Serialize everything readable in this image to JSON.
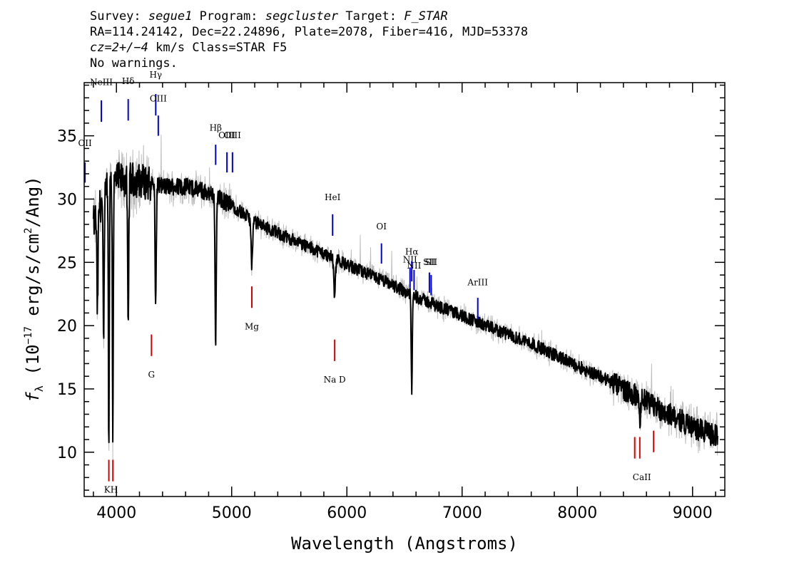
{
  "header": {
    "survey_label": "Survey:",
    "survey": "segue1",
    "program_label": "Program:",
    "program": "segcluster",
    "target_label": "Target:",
    "target": "F_STAR",
    "line2": "RA=114.24142, Dec=22.24896, Plate=2078, Fiber=416, MJD=53378",
    "cz_label": "cz=2+/−4",
    "cz_unit": "km/s Class=STAR F5",
    "line4": "No warnings."
  },
  "colors": {
    "flux": "#000000",
    "noise": "#bdbdbd",
    "emission": "#0000dd",
    "absorption": "#dd0000"
  },
  "chart_data": {
    "type": "line",
    "xlabel": "Wavelength (Angstroms)",
    "ylabel_prefix": "f",
    "ylabel_subscript": "λ",
    "ylabel_main": " (10",
    "ylabel_exp": "−17",
    "ylabel_units": " erg/s/cm",
    "ylabel_units_exp": "2",
    "ylabel_units_end": "/Ang)",
    "xlim": [
      3720,
      9280
    ],
    "ylim": [
      6.5,
      39.2
    ],
    "xticks": [
      4000,
      5000,
      6000,
      7000,
      8000,
      9000
    ],
    "yticks": [
      10,
      15,
      20,
      25,
      30,
      35
    ],
    "x_minor_step": 200,
    "y_minor_step": 1,
    "continuum": [
      [
        3800,
        28
      ],
      [
        3900,
        30.5
      ],
      [
        4000,
        31.5
      ],
      [
        4200,
        31.5
      ],
      [
        4400,
        31
      ],
      [
        4600,
        31
      ],
      [
        4800,
        30.5
      ],
      [
        5000,
        29.5
      ],
      [
        5200,
        28.2
      ],
      [
        5400,
        27.3
      ],
      [
        5600,
        26.5
      ],
      [
        5800,
        25.7
      ],
      [
        6000,
        24.8
      ],
      [
        6200,
        24
      ],
      [
        6400,
        23.2
      ],
      [
        6600,
        22.3
      ],
      [
        6800,
        21.5
      ],
      [
        7000,
        20.8
      ],
      [
        7200,
        20
      ],
      [
        7400,
        19.3
      ],
      [
        7600,
        18.6
      ],
      [
        7800,
        17.7
      ],
      [
        8000,
        16.8
      ],
      [
        8200,
        16
      ],
      [
        8400,
        15
      ],
      [
        8600,
        14
      ],
      [
        8800,
        13
      ],
      [
        9000,
        12
      ],
      [
        9200,
        11.3
      ]
    ],
    "absorption_features": [
      {
        "wave": 3835,
        "depth": 8
      },
      {
        "wave": 3889,
        "depth": 12
      },
      {
        "wave": 3933.7,
        "depth": 21
      },
      {
        "wave": 3968.5,
        "depth": 20
      },
      {
        "wave": 4101.7,
        "depth": 12
      },
      {
        "wave": 4340.5,
        "depth": 10
      },
      {
        "wave": 4861.3,
        "depth": 12
      },
      {
        "wave": 5175,
        "depth": 3.5
      },
      {
        "wave": 5893,
        "depth": 3
      },
      {
        "wave": 6562.8,
        "depth": 7.5
      },
      {
        "wave": 8542,
        "depth": 2
      }
    ],
    "emission_lines": [
      {
        "label": "OII",
        "wave": 3727,
        "y1": 31.3,
        "y2": 32.9,
        "label_y": 34.2
      },
      {
        "label": "NeIII",
        "wave": 3869,
        "y1": 36.1,
        "y2": 37.8,
        "label_y": 39
      },
      {
        "label": "Hδ",
        "wave": 4102,
        "y1": 36.2,
        "y2": 37.9,
        "label_y": 39.1
      },
      {
        "label": "Hγ",
        "wave": 4341,
        "y1": 36.6,
        "y2": 38.3,
        "label_y": 39.6
      },
      {
        "label": "OIII",
        "wave": 4363,
        "y1": 35.0,
        "y2": 36.6,
        "label_y": 37.7
      },
      {
        "label": "Hβ",
        "wave": 4861,
        "y1": 32.7,
        "y2": 34.3,
        "label_y": 35.4
      },
      {
        "label": "OIII",
        "wave": 4959,
        "y1": 32.1,
        "y2": 33.7,
        "label_y": 34.8
      },
      {
        "label": "OIII",
        "wave": 5007,
        "y1": 32.1,
        "y2": 33.7,
        "label_y": 34.8
      },
      {
        "label": "HeI",
        "wave": 5876,
        "y1": 27.1,
        "y2": 28.8,
        "label_y": 29.9
      },
      {
        "label": "OI",
        "wave": 6300,
        "y1": 24.9,
        "y2": 26.5,
        "label_y": 27.6
      },
      {
        "label": "NII",
        "wave": 6548,
        "y1": 23.0,
        "y2": 24.6,
        "label_y": 25.0
      },
      {
        "label": "Hα",
        "wave": 6563,
        "y1": 23.5,
        "y2": 25.1,
        "label_y": 25.6
      },
      {
        "label": "NII",
        "wave": 6583,
        "y1": 22.8,
        "y2": 24.4,
        "label_y": 24.5
      },
      {
        "label": "SII",
        "wave": 6716,
        "y1": 22.6,
        "y2": 24.2,
        "label_y": 24.8
      },
      {
        "label": "SII",
        "wave": 6731,
        "y1": 22.4,
        "y2": 24.0,
        "label_y": 24.8
      },
      {
        "label": "ArIII",
        "wave": 7136,
        "y1": 20.5,
        "y2": 22.2,
        "label_y": 23.2
      }
    ],
    "absorption_lines": [
      {
        "label": "K",
        "wave": 3934,
        "y1": 7.7,
        "y2": 9.4
      },
      {
        "label": "H",
        "wave": 3969,
        "y1": 7.7,
        "y2": 9.4
      },
      {
        "label": "G",
        "wave": 4304,
        "y1": 17.6,
        "y2": 19.3
      },
      {
        "label": "Mg",
        "wave": 5175,
        "y1": 21.4,
        "y2": 23.1
      },
      {
        "label": "Na  D",
        "wave": 5894,
        "y1": 17.2,
        "y2": 18.9
      },
      {
        "label": "CaII",
        "wave": 8498,
        "y1": 9.5,
        "y2": 11.2
      },
      {
        "label": "",
        "wave": 8542,
        "y1": 9.5,
        "y2": 11.2
      },
      {
        "label": "",
        "wave": 8662,
        "y1": 10.0,
        "y2": 11.7
      }
    ],
    "absorption_label_positions": [
      {
        "label": "KH",
        "wave": 3952,
        "y": 6.8
      },
      {
        "label": "G",
        "wave": 4304,
        "y": 15.9
      },
      {
        "label": "Mg",
        "wave": 5175,
        "y": 19.7
      },
      {
        "label": "Na  D",
        "wave": 5894,
        "y": 15.5
      },
      {
        "label": "CaII",
        "wave": 8560,
        "y": 7.8
      }
    ]
  }
}
